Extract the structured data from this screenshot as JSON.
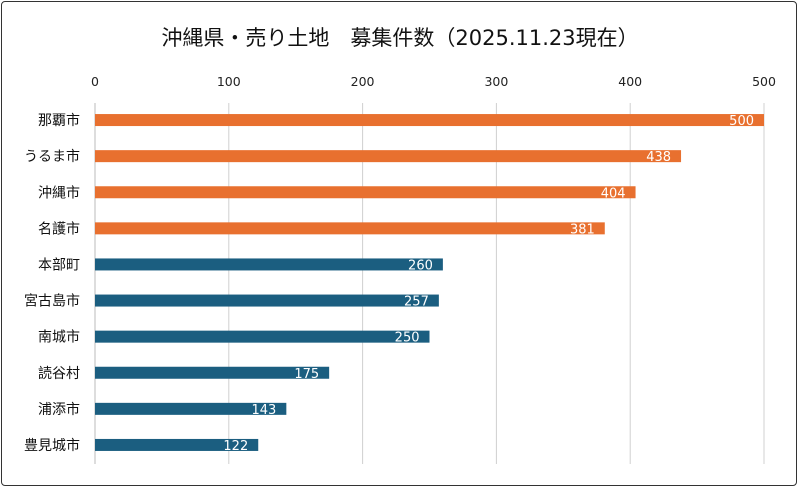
{
  "chart_data": {
    "type": "bar",
    "orientation": "horizontal",
    "title": "沖縄県・売り土地　募集件数（2025.11.23現在）",
    "categories": [
      "那覇市",
      "うるま市",
      "沖縄市",
      "名護市",
      "本部町",
      "宮古島市",
      "南城市",
      "読谷村",
      "浦添市",
      "豊見城市"
    ],
    "values": [
      500,
      438,
      404,
      381,
      260,
      257,
      250,
      175,
      143,
      122
    ],
    "highlight_count": 4,
    "colors": {
      "highlight": "#E8702F",
      "normal": "#1B5E80",
      "grid": "#d0d0d0"
    },
    "xlim": [
      0,
      500
    ],
    "xticks": [
      0,
      100,
      200,
      300,
      400,
      500
    ],
    "xlabel": "",
    "ylabel": "",
    "grid": true,
    "data_labels": true,
    "axis_position": "top"
  }
}
